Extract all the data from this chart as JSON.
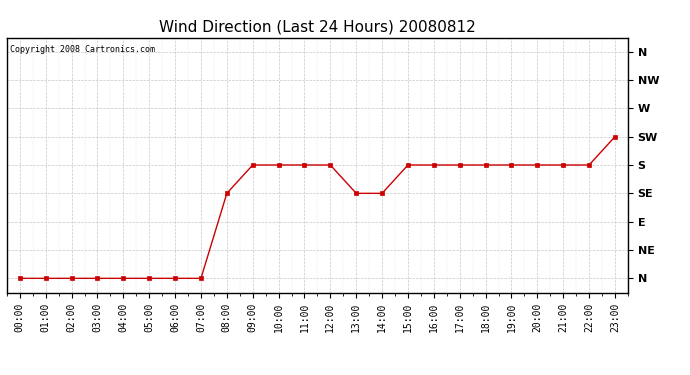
{
  "title": "Wind Direction (Last 24 Hours) 20080812",
  "copyright": "Copyright 2008 Cartronics.com",
  "x_labels": [
    "00:00",
    "01:00",
    "02:00",
    "03:00",
    "04:00",
    "05:00",
    "06:00",
    "07:00",
    "08:00",
    "09:00",
    "10:00",
    "11:00",
    "12:00",
    "13:00",
    "14:00",
    "15:00",
    "16:00",
    "17:00",
    "18:00",
    "19:00",
    "20:00",
    "21:00",
    "22:00",
    "23:00"
  ],
  "y_ticks_labels": [
    "N",
    "NE",
    "E",
    "SE",
    "S",
    "SW",
    "W",
    "NW",
    "N"
  ],
  "y_ticks_values": [
    0,
    1,
    2,
    3,
    4,
    5,
    6,
    7,
    8
  ],
  "data_x": [
    0,
    1,
    2,
    3,
    4,
    5,
    6,
    7,
    8,
    9,
    10,
    11,
    12,
    13,
    14,
    15,
    16,
    17,
    18,
    19,
    20,
    21,
    22,
    23
  ],
  "data_y": [
    0,
    0,
    0,
    0,
    0,
    0,
    0,
    0,
    3,
    4,
    4,
    4,
    4,
    3,
    3,
    4,
    4,
    4,
    4,
    4,
    4,
    4,
    4,
    5
  ],
  "line_color": "#cc0000",
  "marker": "s",
  "marker_size": 2.5,
  "background_color": "#ffffff",
  "plot_bg_color": "#ffffff",
  "grid_color": "#c8c8c8",
  "title_fontsize": 11,
  "copyright_fontsize": 6,
  "tick_fontsize": 7,
  "ytick_fontsize": 8
}
